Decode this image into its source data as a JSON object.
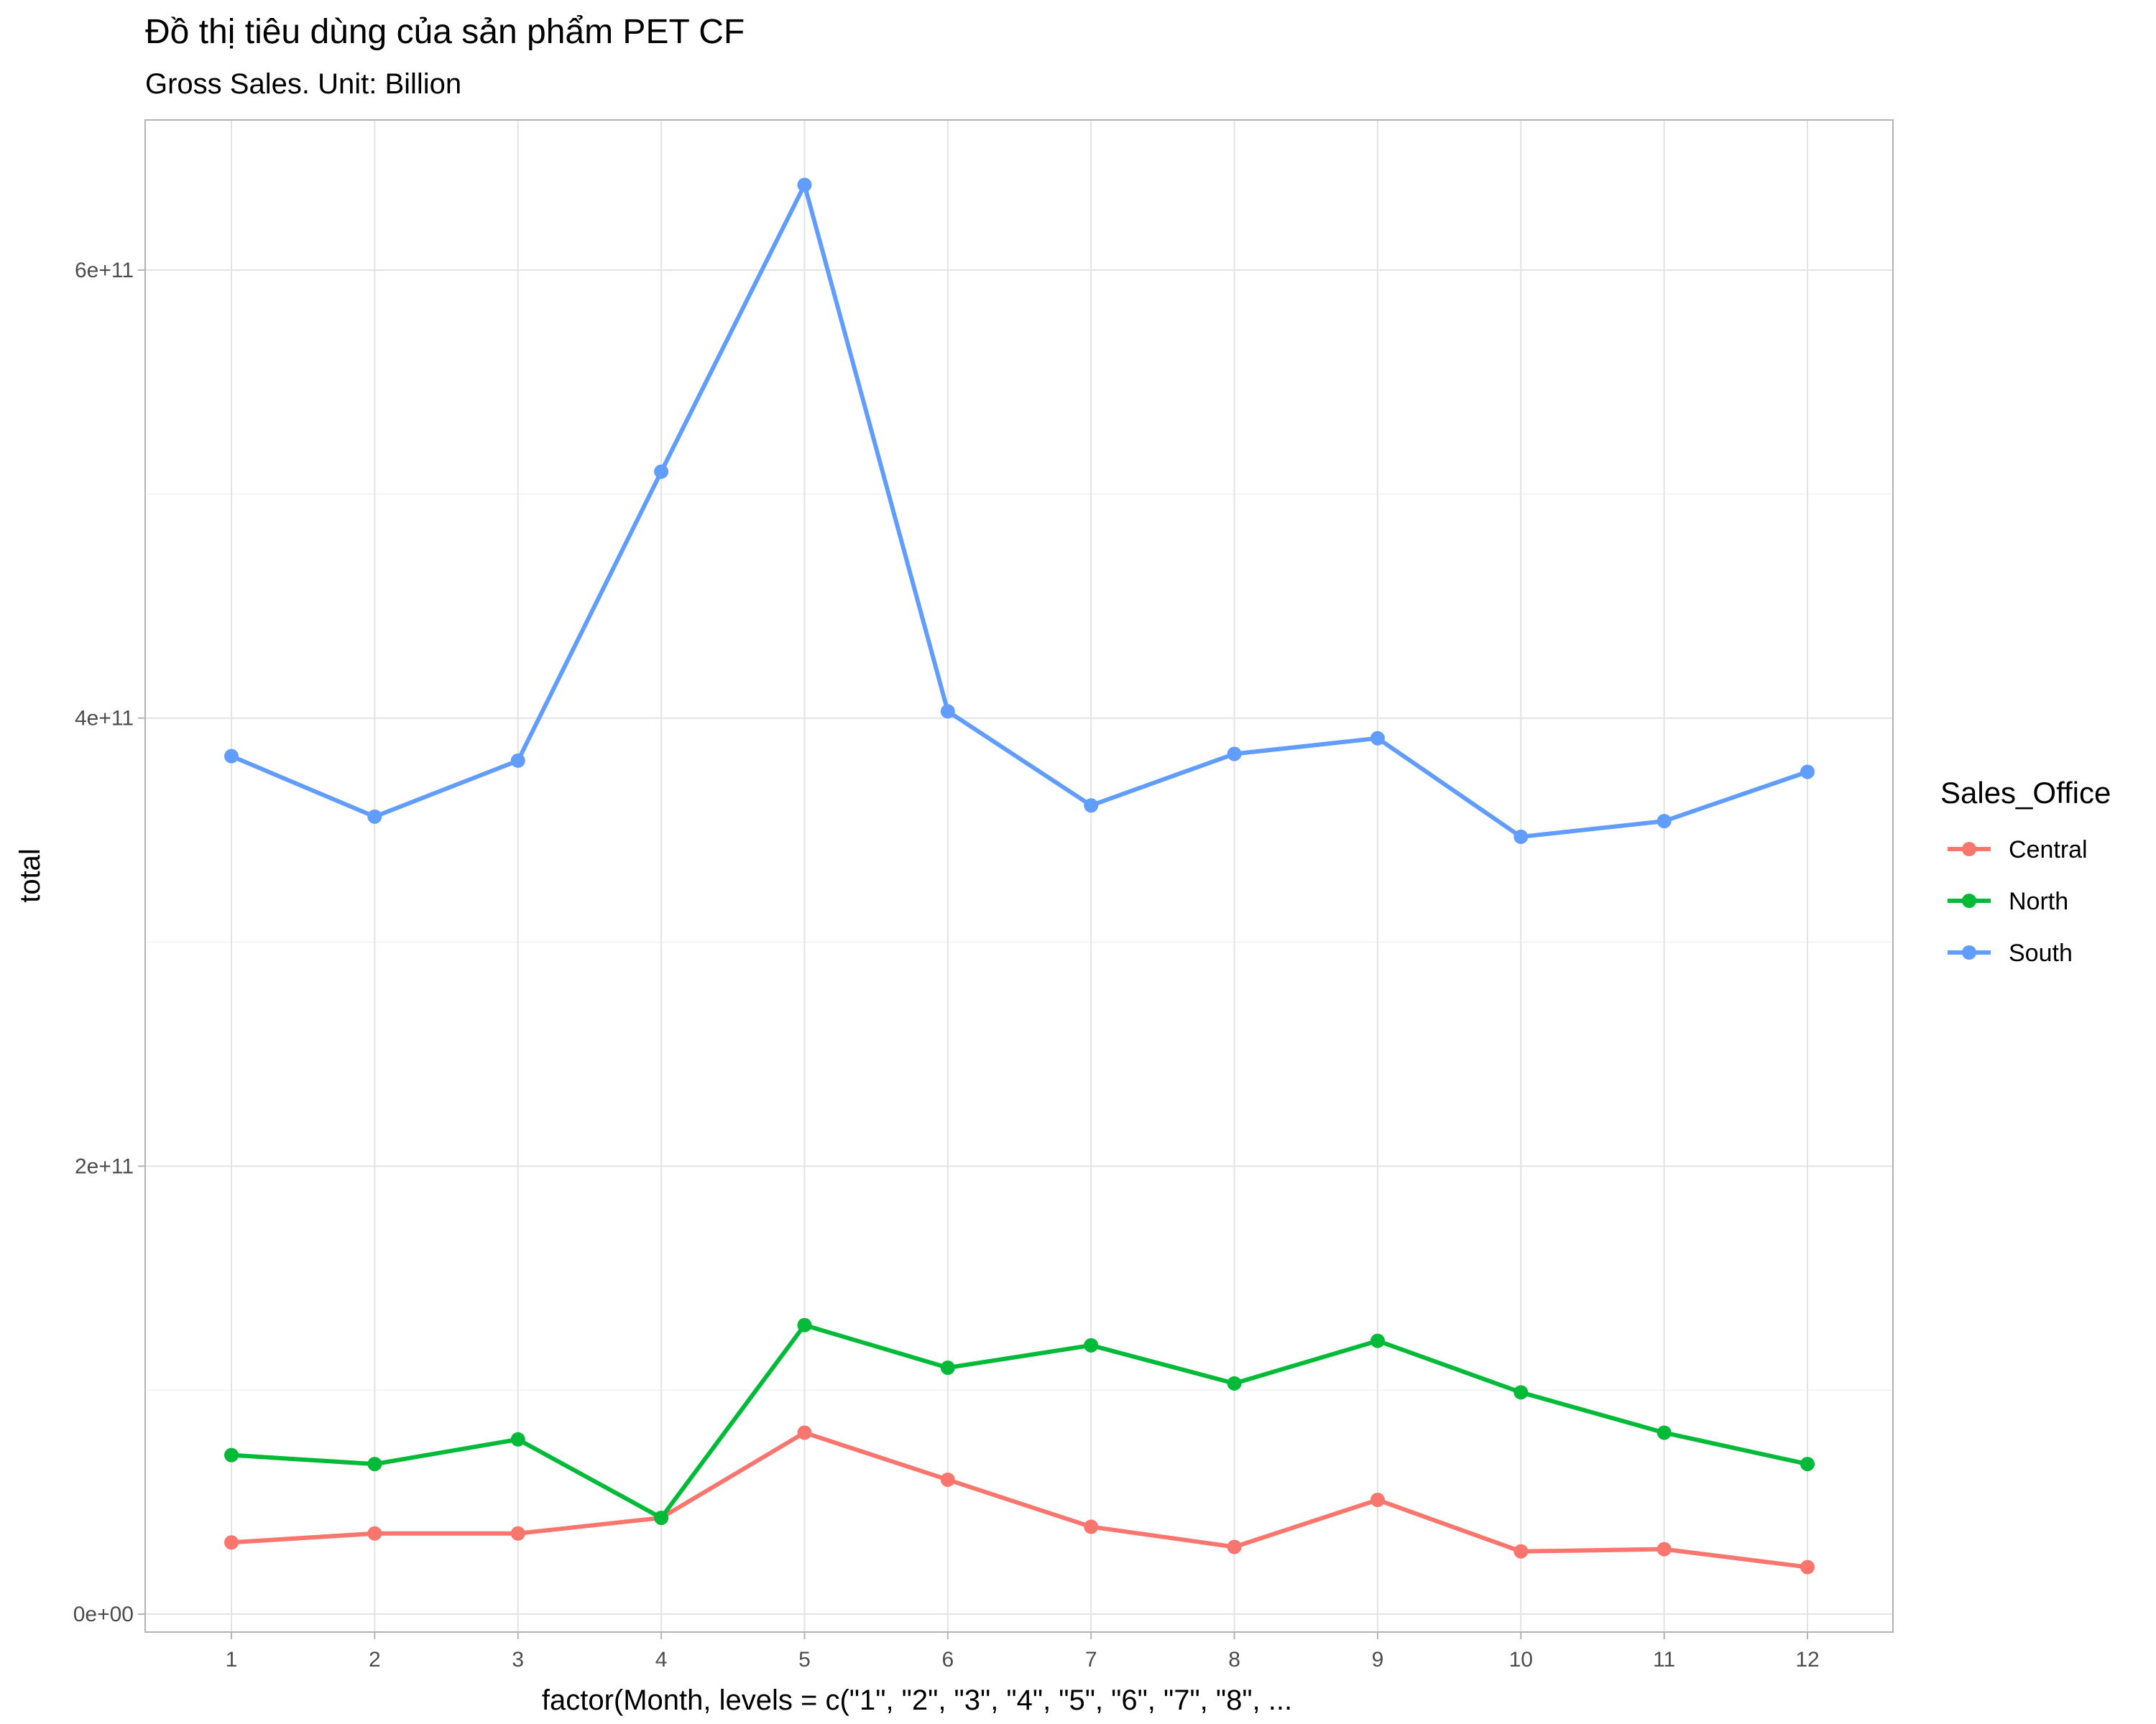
{
  "chart_data": {
    "type": "line",
    "title": "Đồ thị tiêu dùng của sản phẩm PET CF",
    "subtitle": "Gross Sales. Unit: Billion",
    "xlabel": "factor(Month, levels = c(\"1\", \"2\", \"3\", \"4\", \"5\", \"6\", \"7\", \"8\", ...",
    "ylabel": "total",
    "categories": [
      "1",
      "2",
      "3",
      "4",
      "5",
      "6",
      "7",
      "8",
      "9",
      "10",
      "11",
      "12"
    ],
    "ylim": [
      -8000000000,
      667000000000
    ],
    "yticks": [
      0,
      200000000000,
      400000000000,
      600000000000
    ],
    "ytick_labels": [
      "0e+00",
      "2e+11",
      "4e+11",
      "6e+11"
    ],
    "grid": true,
    "legend": {
      "title": "Sales_Office",
      "position": "right"
    },
    "series": [
      {
        "name": "Central",
        "color": "#F8766D",
        "values": [
          32000000000,
          36000000000,
          36000000000,
          43000000000,
          81000000000,
          60000000000,
          39000000000,
          30000000000,
          51000000000,
          28000000000,
          29000000000,
          21000000000
        ]
      },
      {
        "name": "North",
        "color": "#00BA38",
        "values": [
          71000000000,
          67000000000,
          78000000000,
          43000000000,
          129000000000,
          110000000000,
          120000000000,
          103000000000,
          122000000000,
          99000000000,
          81000000000,
          67000000000
        ]
      },
      {
        "name": "South",
        "color": "#619CFF",
        "values": [
          383000000000,
          356000000000,
          381000000000,
          510000000000,
          638000000000,
          403000000000,
          361000000000,
          384000000000,
          391000000000,
          347000000000,
          354000000000,
          376000000000
        ]
      }
    ]
  }
}
